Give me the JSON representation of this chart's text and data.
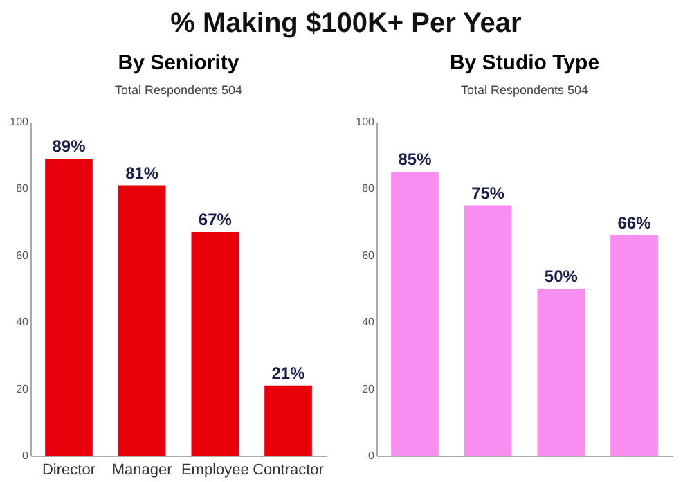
{
  "chart_data": [
    {
      "type": "bar",
      "title": "By Seniority",
      "subtitle": "Total Respondents 504",
      "annotations": [
        "% Making $100K+ Per Year"
      ],
      "categories": [
        "Director",
        "Manager",
        "Employee",
        "Contractor"
      ],
      "values": [
        89,
        81,
        67,
        21
      ],
      "color": "#e8000b",
      "ylim": [
        0,
        100
      ],
      "yticks": [
        0,
        20,
        40,
        60,
        80,
        100
      ],
      "data_labels": true,
      "grid": false,
      "value_labels": [
        "89%",
        "81%",
        "67%",
        "21%"
      ]
    },
    {
      "type": "bar",
      "title": "By Studio Type",
      "subtitle": "Total Respondents 504",
      "categories": [
        null,
        null,
        null,
        null
      ],
      "values": [
        85,
        75,
        50,
        66
      ],
      "color": "#f98ef0",
      "ylim": [
        0,
        100
      ],
      "yticks": [
        0,
        20,
        40,
        60,
        80,
        100
      ],
      "data_labels": true,
      "grid": false,
      "value_labels": [
        "85%",
        "75%",
        "50%",
        "66%"
      ]
    }
  ]
}
